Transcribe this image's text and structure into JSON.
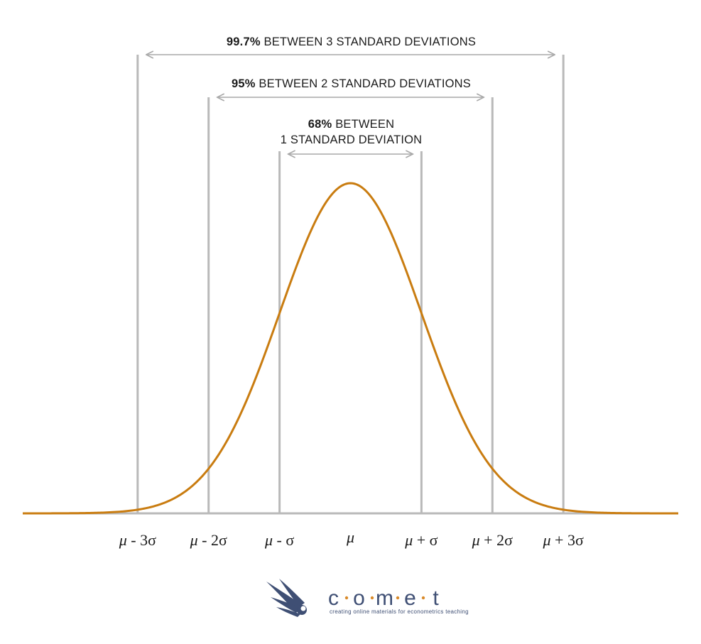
{
  "chart_data": {
    "type": "line",
    "distribution": "normal",
    "mean": 0,
    "sd": 1,
    "xlim": [
      -4.62,
      4.62
    ],
    "curve_color": "#c97c10",
    "line_color": "#b9b9b9",
    "arrow_color": "#a9a9a9",
    "ranges": [
      {
        "k": 3,
        "percent": "99.7%",
        "label": "BETWEEN 3 STANDARD DEVIATIONS"
      },
      {
        "k": 2,
        "percent": "95%",
        "label": "BETWEEN 2 STANDARD DEVIATIONS"
      },
      {
        "k": 1,
        "percent": "68%",
        "label": "BETWEEN",
        "label_line2": "1 STANDARD DEVIATION"
      }
    ],
    "ticks": [
      {
        "value": -3,
        "mu": "μ",
        "rest": " - 3σ"
      },
      {
        "value": -2,
        "mu": "μ",
        "rest": " - 2σ"
      },
      {
        "value": -1,
        "mu": "μ",
        "rest": " - σ"
      },
      {
        "value": 0,
        "mu": "μ",
        "rest": ""
      },
      {
        "value": 1,
        "mu": "μ",
        "rest": " + σ"
      },
      {
        "value": 2,
        "mu": "μ",
        "rest": " + 2σ"
      },
      {
        "value": 3,
        "mu": "μ",
        "rest": " + 3σ"
      }
    ]
  },
  "logo": {
    "letters": [
      "c",
      "o",
      "m",
      "e",
      "t"
    ],
    "tagline": "creating online materials for econometrics teaching",
    "primary_color": "#3f4f74",
    "accent_color": "#d98a2a"
  }
}
